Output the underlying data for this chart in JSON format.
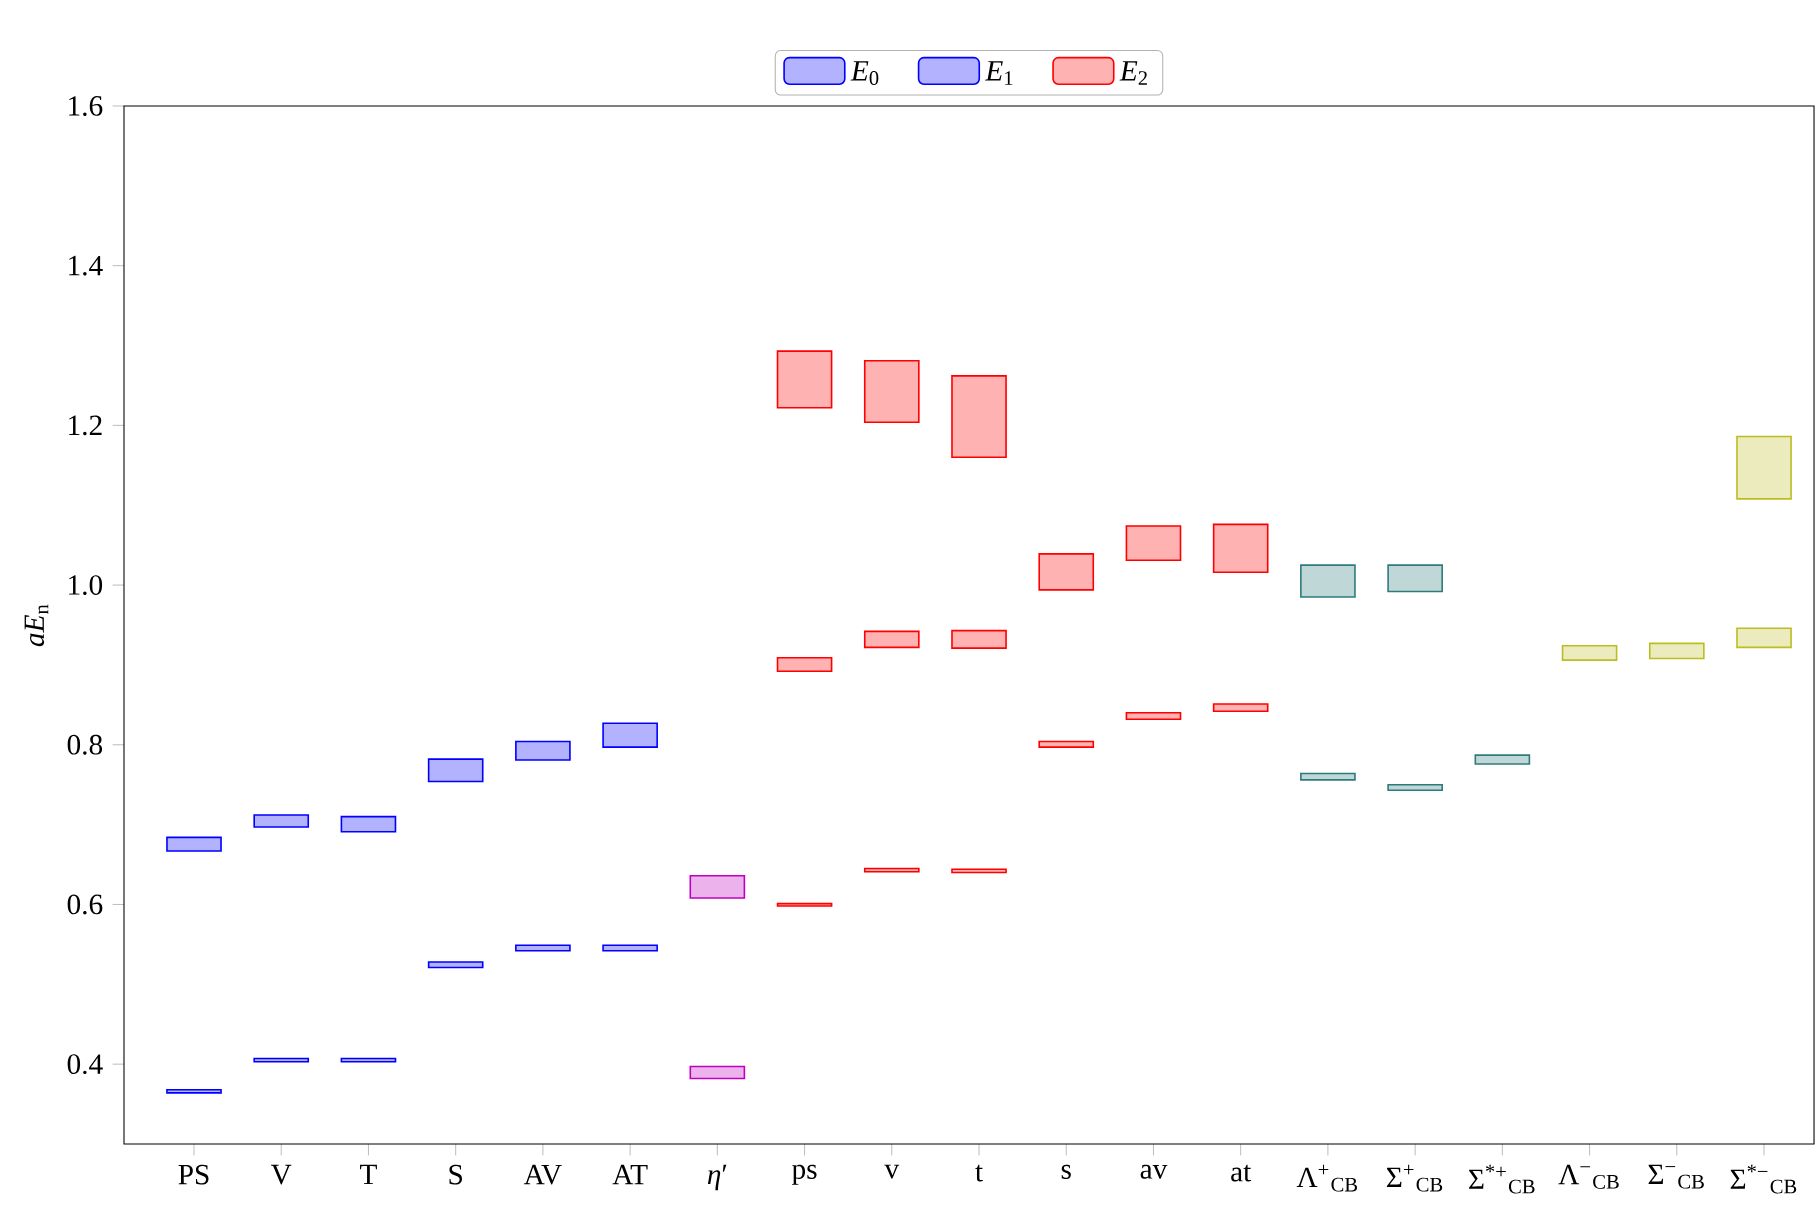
{
  "chart_data": {
    "type": "bar",
    "ylabel": "*aE*$_{n}$",
    "categories": [
      "PS",
      "V",
      "T",
      "S",
      "AV",
      "AT",
      "*η*′",
      "ps",
      "v",
      "t",
      "s",
      "av",
      "at",
      "Λ$^{+}$$_{CB}$",
      "Σ$^{+}$$_{CB}$",
      "Σ$^{*+}$$_{CB}$",
      "Λ$^{−}$$_{CB}$",
      "Σ$^{−}$$_{CB}$",
      "Σ$^{*−}$$_{CB}$"
    ],
    "series": [
      {
        "name": "*E*$_{0}$",
        "colors": [
          "#0000ff",
          "#0000ff",
          "#0000ff",
          "#0000ff",
          "#0000ff",
          "#0000ff",
          "#bf00bf",
          "#ff0000",
          "#ff0000",
          "#ff0000",
          "#ff0000",
          "#ff0000",
          "#ff0000",
          "#2e7b7b",
          "#2e7b7b",
          "#2e7b7b",
          "#bcbd22",
          "#bcbd22",
          "#bcbd22"
        ],
        "base": [
          0.364,
          0.403,
          0.403,
          0.521,
          0.542,
          0.542,
          0.382,
          0.598,
          0.641,
          0.64,
          0.797,
          0.832,
          0.842,
          0.756,
          0.743,
          0.776,
          0.906,
          0.908,
          0.922
        ],
        "values": [
          0.004,
          0.004,
          0.004,
          0.007,
          0.007,
          0.007,
          0.015,
          0.003,
          0.004,
          0.004,
          0.007,
          0.008,
          0.009,
          0.008,
          0.007,
          0.011,
          0.018,
          0.019,
          0.024
        ]
      },
      {
        "name": "*E*$_{1}$",
        "colors": [
          "#0000ff",
          "#0000ff",
          "#0000ff",
          "#0000ff",
          "#0000ff",
          "#0000ff",
          "#bf00bf",
          "#ff0000",
          "#ff0000",
          "#ff0000",
          "#ff0000",
          "#ff0000",
          "#ff0000",
          "#2e7b7b",
          "#2e7b7b",
          "#2e7b7b",
          "#bcbd22",
          "#bcbd22",
          "#bcbd22"
        ],
        "base": [
          0.667,
          0.697,
          0.691,
          0.754,
          0.781,
          0.797,
          0.608,
          0.892,
          0.922,
          0.921,
          0.994,
          1.031,
          1.016,
          0.985,
          0.992,
          null,
          null,
          null,
          1.108
        ],
        "values": [
          0.017,
          0.015,
          0.019,
          0.028,
          0.023,
          0.03,
          0.028,
          0.017,
          0.02,
          0.022,
          0.045,
          0.043,
          0.06,
          0.04,
          0.033,
          null,
          null,
          null,
          0.078
        ]
      },
      {
        "name": "*E*$_{2}$",
        "colors": [
          "#0000ff",
          "#0000ff",
          "#0000ff",
          "#0000ff",
          "#0000ff",
          "#0000ff",
          "#bf00bf",
          "#ff0000",
          "#ff0000",
          "#ff0000",
          "#ff0000",
          "#ff0000",
          "#ff0000",
          "#2e7b7b",
          "#2e7b7b",
          "#2e7b7b",
          "#bcbd22",
          "#bcbd22",
          "#bcbd22"
        ],
        "base": [
          null,
          null,
          null,
          null,
          null,
          null,
          null,
          1.222,
          1.204,
          1.16,
          null,
          null,
          null,
          null,
          null,
          null,
          null,
          null,
          null
        ],
        "values": [
          null,
          null,
          null,
          null,
          null,
          null,
          null,
          0.071,
          0.077,
          0.102,
          null,
          null,
          null,
          null,
          null,
          null,
          null,
          null,
          null
        ]
      }
    ],
    "ylim": [
      0.3,
      1.6
    ],
    "yticks": [
      0.4,
      0.6,
      0.8,
      {
        "value": 1.0,
        "label": "1.0"
      },
      1.2,
      1.4,
      1.6
    ],
    "legend": "top"
  }
}
